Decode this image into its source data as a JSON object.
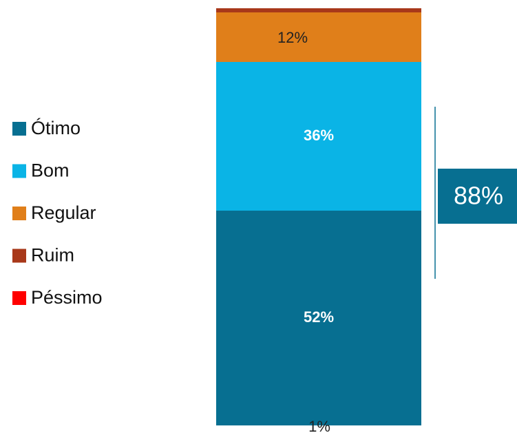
{
  "chart_data": {
    "type": "stacked_bar",
    "categories": [
      null
    ],
    "series": [
      {
        "name": "Ótimo",
        "color": "#076f91",
        "values": [
          52
        ],
        "value_labels": [
          "52%"
        ]
      },
      {
        "name": "Bom",
        "color": "#0ab4e6",
        "values": [
          36
        ],
        "value_labels": [
          "36%"
        ]
      },
      {
        "name": "Regular",
        "color": "#e07f1a",
        "values": [
          12
        ],
        "value_labels": [
          "12%"
        ]
      },
      {
        "name": "Ruim",
        "color": "#a8381a",
        "values": [
          1
        ],
        "value_labels": [
          "1%"
        ]
      },
      {
        "name": "Péssimo",
        "color": "#ff0000",
        "values": [
          0
        ]
      }
    ],
    "annotations": [
      {
        "text": "88%"
      }
    ]
  }
}
